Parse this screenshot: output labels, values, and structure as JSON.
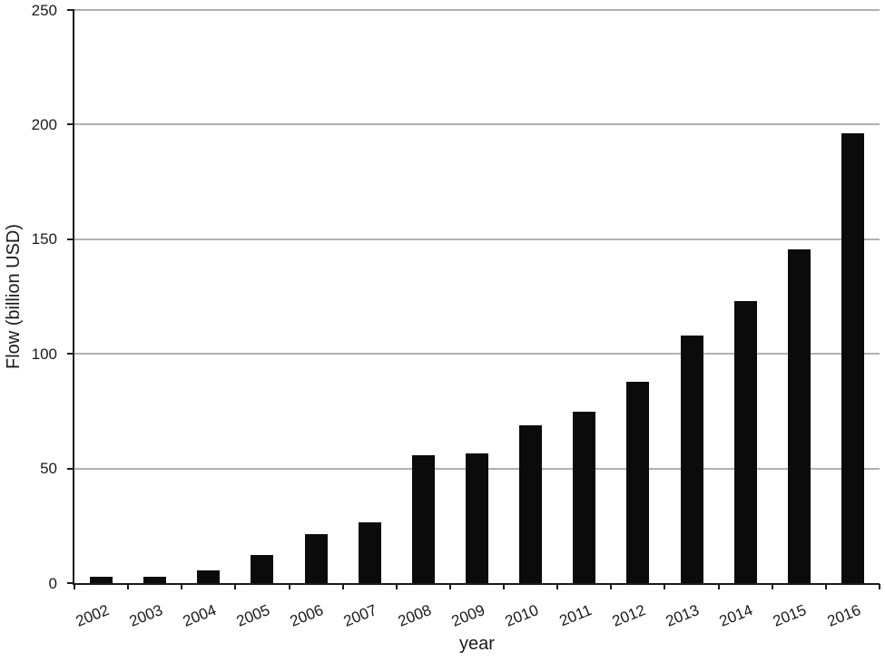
{
  "chart_data": {
    "type": "bar",
    "xlabel": "year",
    "ylabel": "Flow (billion USD)",
    "categories": [
      "2002",
      "2003",
      "2004",
      "2005",
      "2006",
      "2007",
      "2008",
      "2009",
      "2010",
      "2011",
      "2012",
      "2013",
      "2014",
      "2015",
      "2016"
    ],
    "values": [
      2.7,
      2.9,
      5.5,
      12.3,
      21.2,
      26.5,
      55.9,
      56.5,
      68.8,
      74.7,
      87.8,
      107.8,
      123.1,
      145.7,
      196.2
    ],
    "ylim": [
      0,
      250
    ],
    "yticks": [
      0,
      50,
      100,
      150,
      200,
      250
    ],
    "grid": "horizontal",
    "legend": "none",
    "x_tick_rotation_deg": -22,
    "bar_color": "#0b0b0b",
    "gridline_color": "#b0b0b0",
    "axis_color": "#1a1a1a",
    "text_color": "#1a1a1a"
  }
}
